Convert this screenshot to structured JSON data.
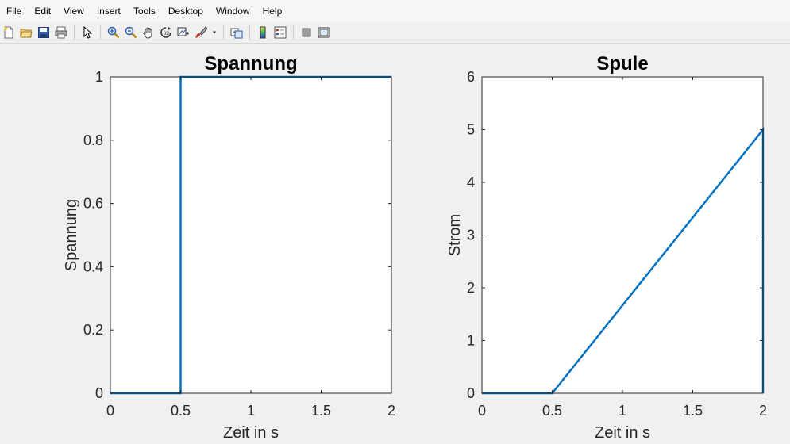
{
  "menu": [
    "File",
    "Edit",
    "View",
    "Insert",
    "Tools",
    "Desktop",
    "Window",
    "Help"
  ],
  "toolbar": [
    {
      "icon": "new-figure-icon"
    },
    {
      "icon": "open-file-icon"
    },
    {
      "icon": "save-icon"
    },
    {
      "icon": "print-icon"
    },
    {
      "sep": true
    },
    {
      "icon": "select-pointer-icon"
    },
    {
      "sep": true
    },
    {
      "icon": "zoom-in-icon"
    },
    {
      "icon": "zoom-out-icon"
    },
    {
      "icon": "pan-hand-icon"
    },
    {
      "icon": "rotate-3d-icon"
    },
    {
      "icon": "data-cursor-icon"
    },
    {
      "icon": "brush-icon"
    },
    {
      "icon": "brush-dropdown-icon"
    },
    {
      "sep": true
    },
    {
      "icon": "link-plot-icon"
    },
    {
      "sep": true
    },
    {
      "icon": "colorbar-icon"
    },
    {
      "icon": "legend-icon"
    },
    {
      "sep": true
    },
    {
      "icon": "hide-plot-tools-icon"
    },
    {
      "icon": "show-plot-tools-icon"
    }
  ],
  "colors": {
    "line": "#0072bd",
    "axes": "#262626",
    "figure_bg": "#f0f0f0",
    "axes_bg": "#ffffff"
  },
  "chart_data": [
    {
      "type": "line",
      "title": "Spannung",
      "xlabel": "Zeit in s",
      "ylabel": "Spannung",
      "xlim": [
        0,
        2
      ],
      "ylim": [
        0,
        1
      ],
      "xticks": [
        0,
        0.5,
        1,
        1.5,
        2
      ],
      "xticklabels": [
        "0",
        "0.5",
        "1",
        "1.5",
        "2"
      ],
      "yticks": [
        0,
        0.2,
        0.4,
        0.6,
        0.8,
        1
      ],
      "yticklabels": [
        "0",
        "0.2",
        "0.4",
        "0.6",
        "0.8",
        "1"
      ],
      "grid": false,
      "series": [
        {
          "x": [
            0,
            0.5,
            0.5,
            2
          ],
          "y": [
            0,
            0,
            1,
            1
          ]
        }
      ]
    },
    {
      "type": "line",
      "title": "Spule",
      "xlabel": "Zeit in s",
      "ylabel": "Strom",
      "xlim": [
        0,
        2
      ],
      "ylim": [
        0,
        6
      ],
      "xticks": [
        0,
        0.5,
        1,
        1.5,
        2
      ],
      "xticklabels": [
        "0",
        "0.5",
        "1",
        "1.5",
        "2"
      ],
      "yticks": [
        0,
        1,
        2,
        3,
        4,
        5,
        6
      ],
      "yticklabels": [
        "0",
        "1",
        "2",
        "3",
        "4",
        "5",
        "6"
      ],
      "grid": false,
      "series": [
        {
          "x": [
            0,
            0.5,
            2,
            2
          ],
          "y": [
            0,
            0,
            5,
            0
          ]
        }
      ]
    }
  ]
}
